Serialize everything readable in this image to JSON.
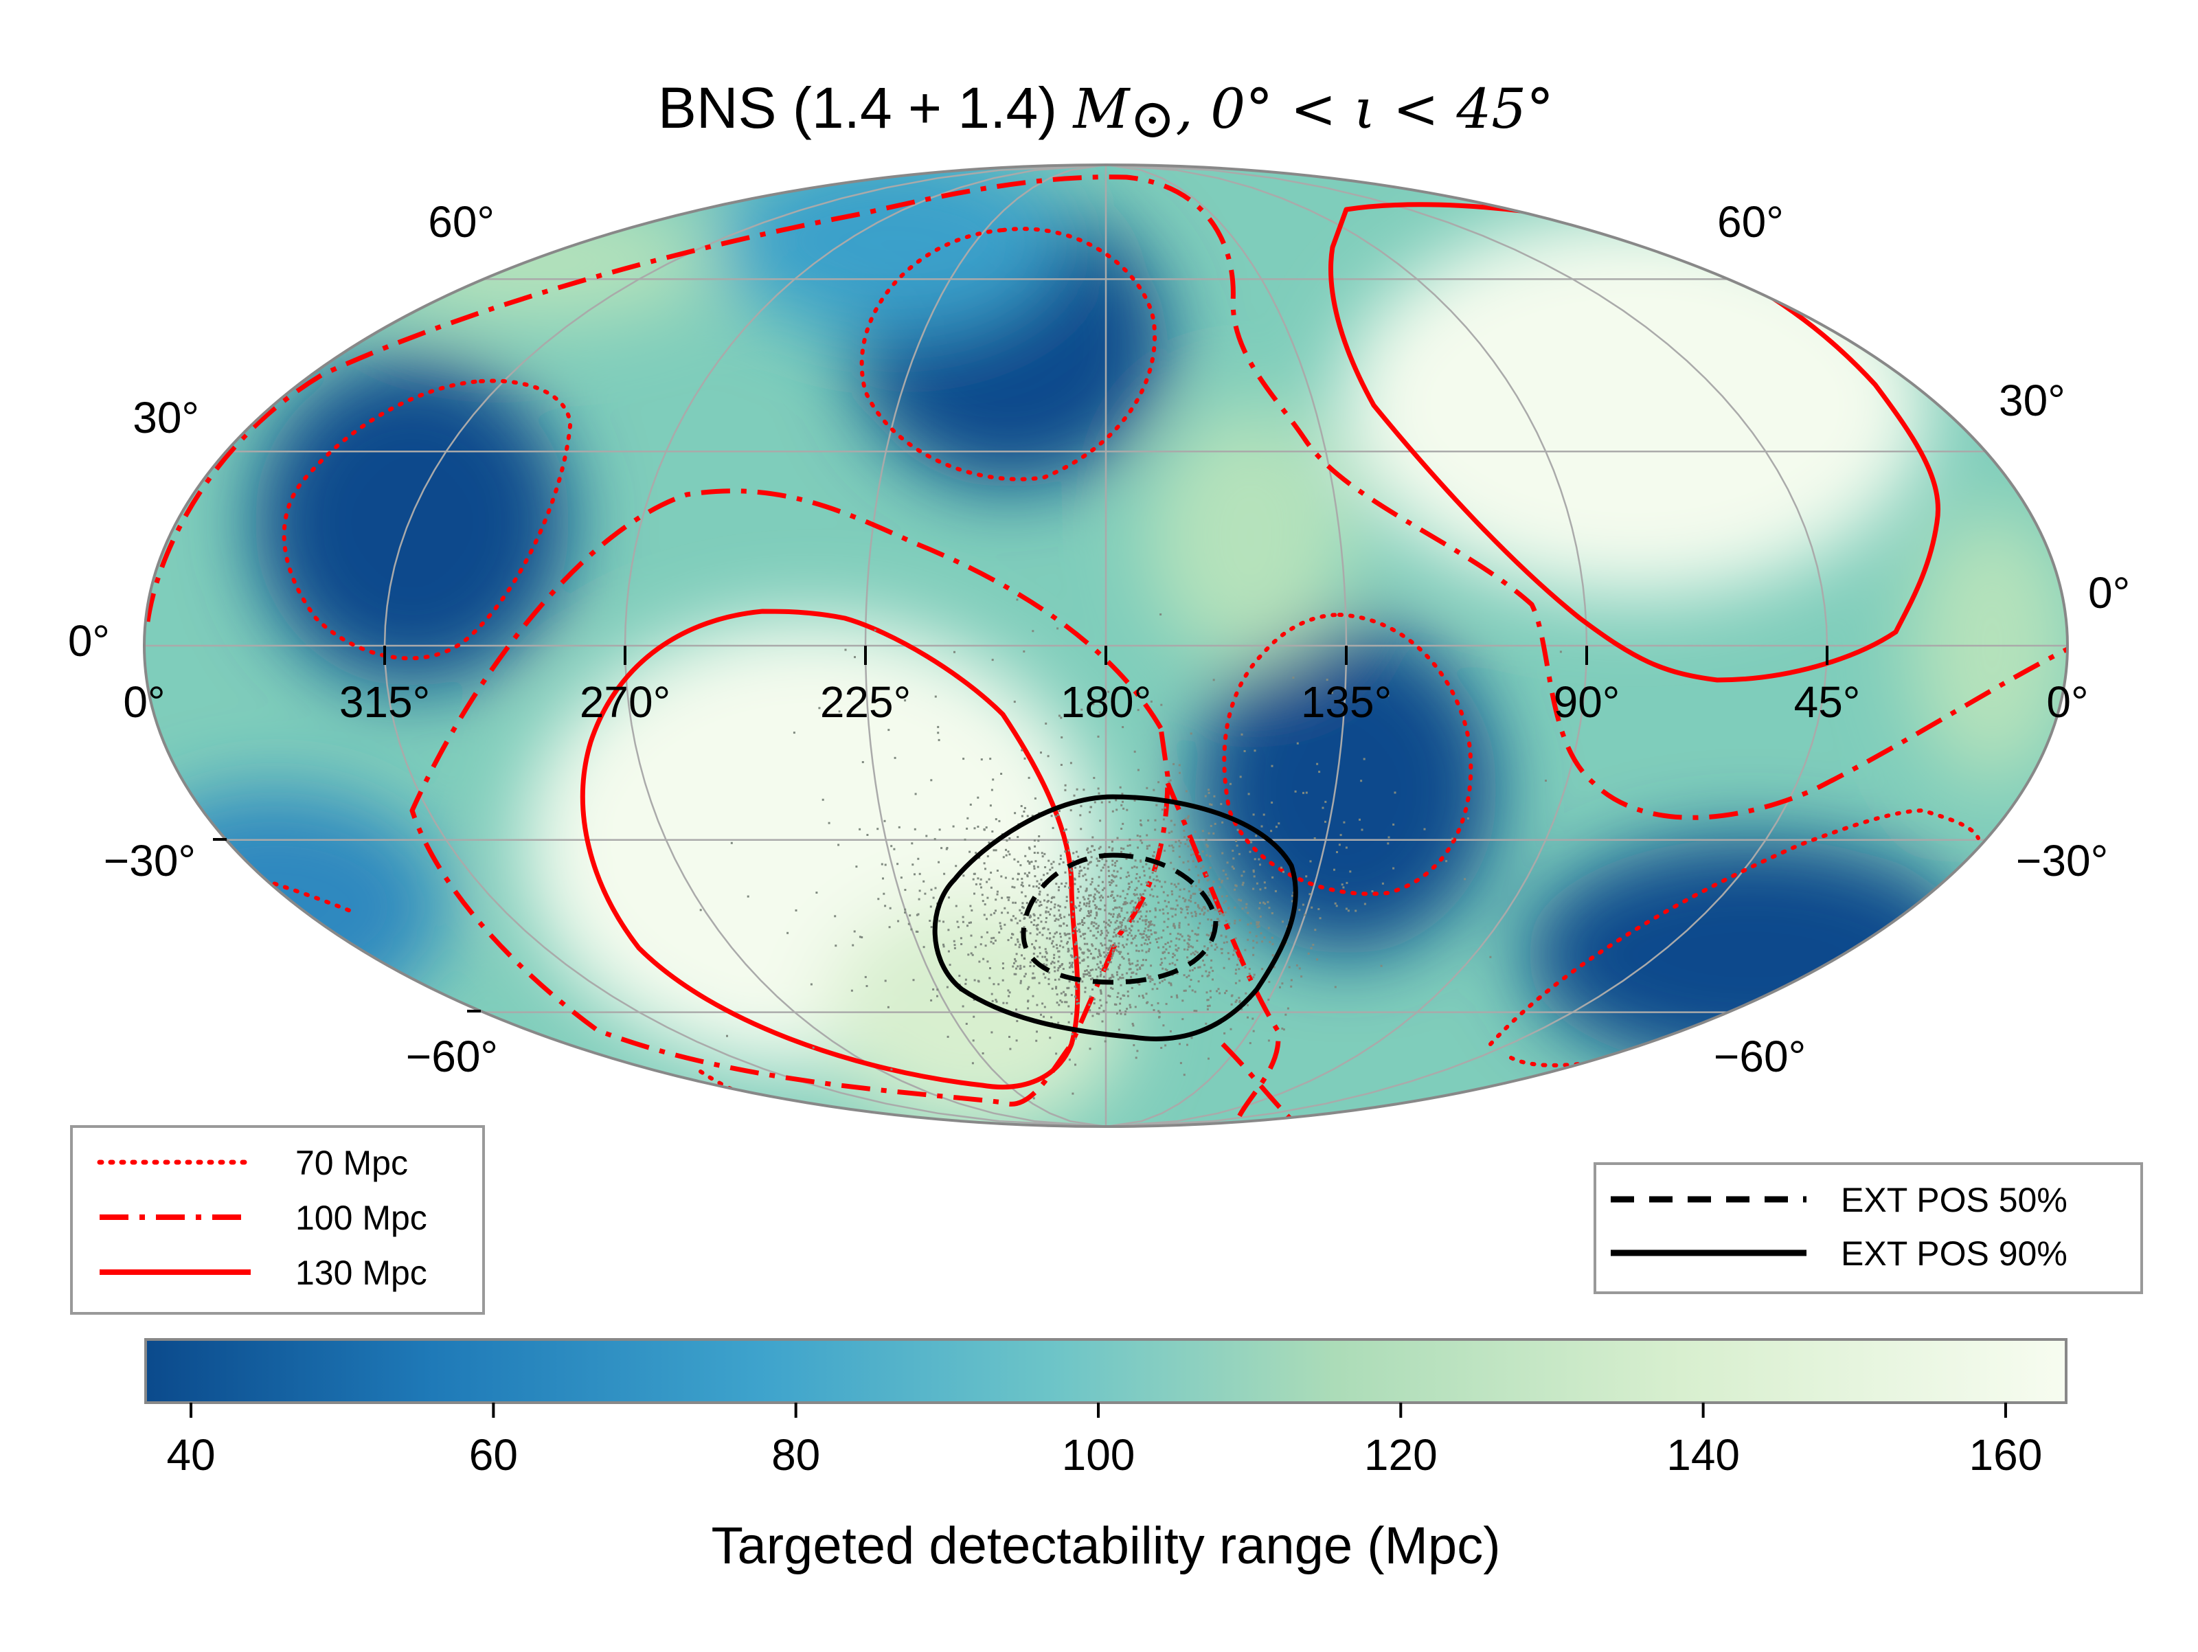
{
  "chart_data": {
    "type": "heatmap",
    "projection": "mollweide",
    "title": {
      "prefix": "BNS (1.4 + 1.4) ",
      "mass_symbol": "M",
      "mass_subscript": "⊙",
      "inclination": ", 0° < ι < 45°"
    },
    "lon_ticks": [
      "0°",
      "315°",
      "270°",
      "225°",
      "180°",
      "135°",
      "90°",
      "45°",
      "0°"
    ],
    "lat_ticks_left": [
      "60°",
      "30°",
      "0°",
      "−30°",
      "−60°"
    ],
    "lat_ticks_right": [
      "60°",
      "30°",
      "0°",
      "−30°",
      "−60°"
    ],
    "colormap": "GnBu_r",
    "colormap_stops": [
      "#0b4a8c",
      "#1f7ab8",
      "#4fb3d3",
      "#7fcdbb",
      "#b5e2bb",
      "#dcf0d3",
      "#f7fcf0"
    ],
    "colorbar": {
      "label": "Targeted detectability range (Mpc)",
      "range": [
        37,
        164
      ],
      "ticks": [
        "40",
        "60",
        "80",
        "100",
        "120",
        "140",
        "160"
      ],
      "tick_values": [
        40,
        60,
        80,
        100,
        120,
        140,
        160
      ]
    },
    "contour_legend": [
      {
        "label": "70 Mpc",
        "style": "dotted",
        "color": "#ff0000"
      },
      {
        "label": "100 Mpc",
        "style": "dashdot",
        "color": "#ff0000"
      },
      {
        "label": "130 Mpc",
        "style": "solid",
        "color": "#ff0000"
      }
    ],
    "posterior_legend": [
      {
        "label": "EXT POS 50%",
        "style": "dashed",
        "color": "#000000"
      },
      {
        "label": "EXT POS 90%",
        "style": "solid",
        "color": "#000000"
      }
    ],
    "posterior_center": {
      "ra_deg": 170,
      "dec_deg": -40
    }
  }
}
